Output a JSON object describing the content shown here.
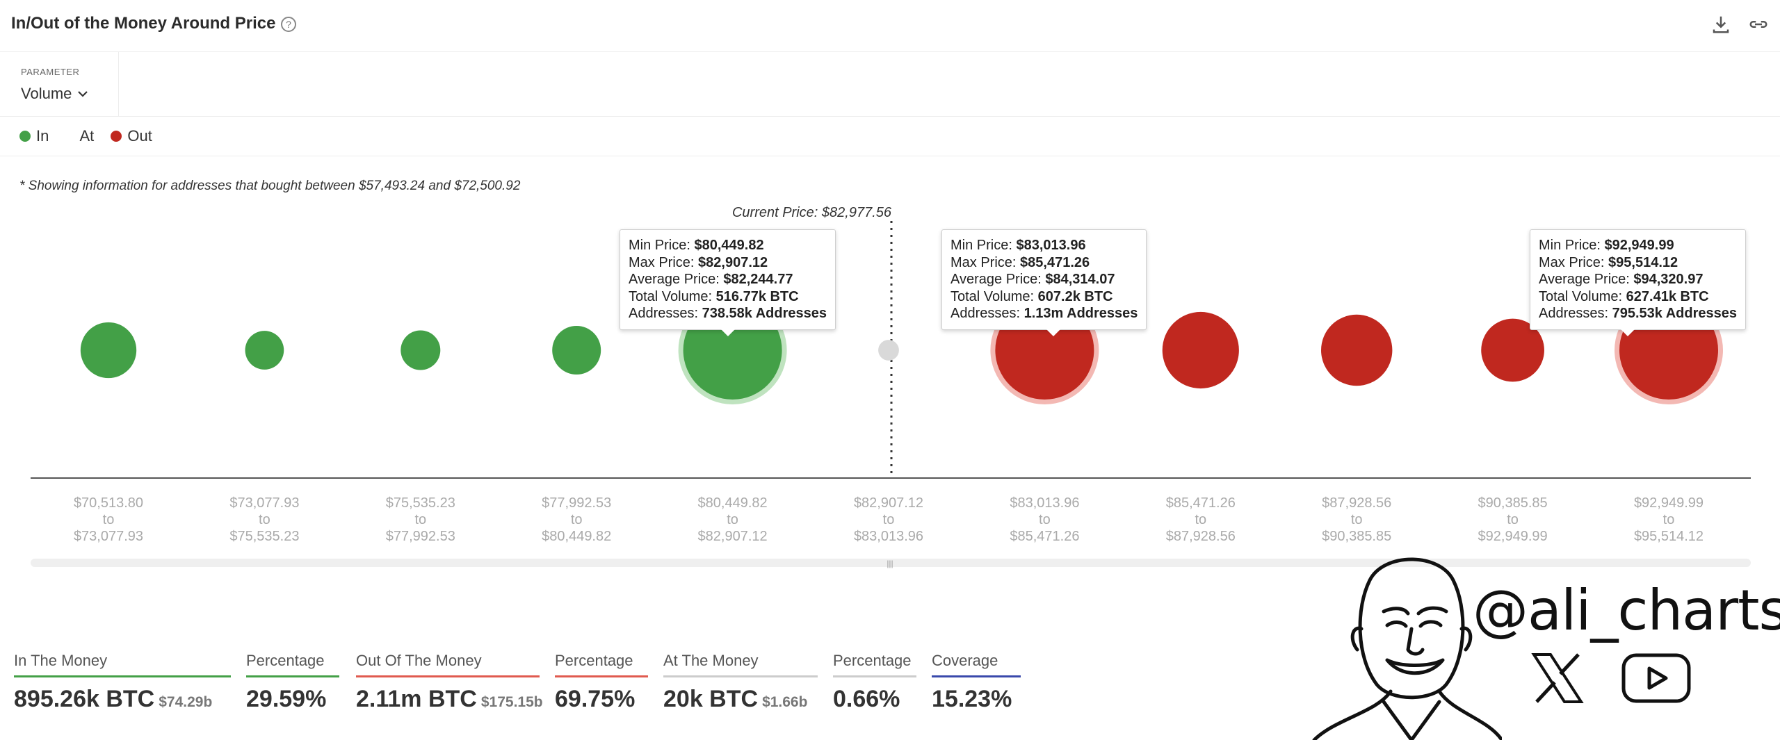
{
  "header": {
    "title": "In/Out of the Money Around Price",
    "help_icon": "question-circle-icon"
  },
  "toolbar": {
    "download_icon": "download-icon",
    "link_icon": "link-icon"
  },
  "parameter": {
    "label": "PARAMETER",
    "value": "Volume"
  },
  "legend": [
    {
      "label": "In",
      "color": "#43a047"
    },
    {
      "label": "At",
      "color": "#9e9e9e"
    },
    {
      "label": "Out",
      "color": "#c0281f"
    }
  ],
  "note": "* Showing information for addresses that bought between $57,493.24 and $72,500.92",
  "chart_data": {
    "type": "bubble",
    "current_price_label": "Current Price: $82,977.56",
    "ranges": [
      {
        "from": "$70,513.80",
        "to": "$73,077.93",
        "status": "in"
      },
      {
        "from": "$73,077.93",
        "to": "$75,535.23",
        "status": "in"
      },
      {
        "from": "$75,535.23",
        "to": "$77,992.53",
        "status": "in"
      },
      {
        "from": "$77,992.53",
        "to": "$80,449.82",
        "status": "in"
      },
      {
        "from": "$80,449.82",
        "to": "$82,907.12",
        "status": "in"
      },
      {
        "from": "$82,907.12",
        "to": "$83,013.96",
        "status": "at"
      },
      {
        "from": "$83,013.96",
        "to": "$85,471.26",
        "status": "out"
      },
      {
        "from": "$85,471.26",
        "to": "$87,928.56",
        "status": "out"
      },
      {
        "from": "$87,928.56",
        "to": "$90,385.85",
        "status": "out"
      },
      {
        "from": "$90,385.85",
        "to": "$92,949.99",
        "status": "out"
      },
      {
        "from": "$92,949.99",
        "to": "$95,514.12",
        "status": "out"
      }
    ],
    "relative_size": [
      0.62,
      0.43,
      0.44,
      0.54,
      1.0,
      0.23,
      1.0,
      0.85,
      0.79,
      0.7,
      1.0
    ],
    "highlighted": [
      4,
      6,
      10
    ],
    "range_word": "to"
  },
  "tooltips": [
    {
      "min_label": "Min Price:",
      "min": "$80,449.82",
      "max_label": "Max Price:",
      "max": "$82,907.12",
      "avg_label": "Average Price:",
      "avg": "$82,244.77",
      "vol_label": "Total Volume:",
      "vol": "516.77k BTC",
      "addr_label": "Addresses:",
      "addr": "738.58k Addresses"
    },
    {
      "min_label": "Min Price:",
      "min": "$83,013.96",
      "max_label": "Max Price:",
      "max": "$85,471.26",
      "avg_label": "Average Price:",
      "avg": "$84,314.07",
      "vol_label": "Total Volume:",
      "vol": "607.2k BTC",
      "addr_label": "Addresses:",
      "addr": "1.13m Addresses"
    },
    {
      "min_label": "Min Price:",
      "min": "$92,949.99",
      "max_label": "Max Price:",
      "max": "$95,514.12",
      "avg_label": "Average Price:",
      "avg": "$94,320.97",
      "vol_label": "Total Volume:",
      "vol": "627.41k BTC",
      "addr_label": "Addresses:",
      "addr": "795.53k Addresses"
    }
  ],
  "stats": {
    "in": {
      "label": "In The Money",
      "value": "895.26k BTC",
      "sub": "$74.29b",
      "color": "#43a047"
    },
    "in_pct": {
      "label": "Percentage",
      "value": "29.59%",
      "color": "#43a047"
    },
    "out": {
      "label": "Out Of The Money",
      "value": "2.11m BTC",
      "sub": "$175.15b",
      "color": "#e05a4f"
    },
    "out_pct": {
      "label": "Percentage",
      "value": "69.75%",
      "color": "#e05a4f"
    },
    "at": {
      "label": "At The Money",
      "value": "20k BTC",
      "sub": "$1.66b",
      "color": "#cccccc"
    },
    "at_pct": {
      "label": "Percentage",
      "value": "0.66%",
      "color": "#cccccc"
    },
    "coverage": {
      "label": "Coverage",
      "value": "15.23%",
      "color": "#3949ab"
    }
  },
  "branding": {
    "handle": "@ali_charts",
    "icons": [
      "x-logo-icon",
      "youtube-icon"
    ]
  }
}
